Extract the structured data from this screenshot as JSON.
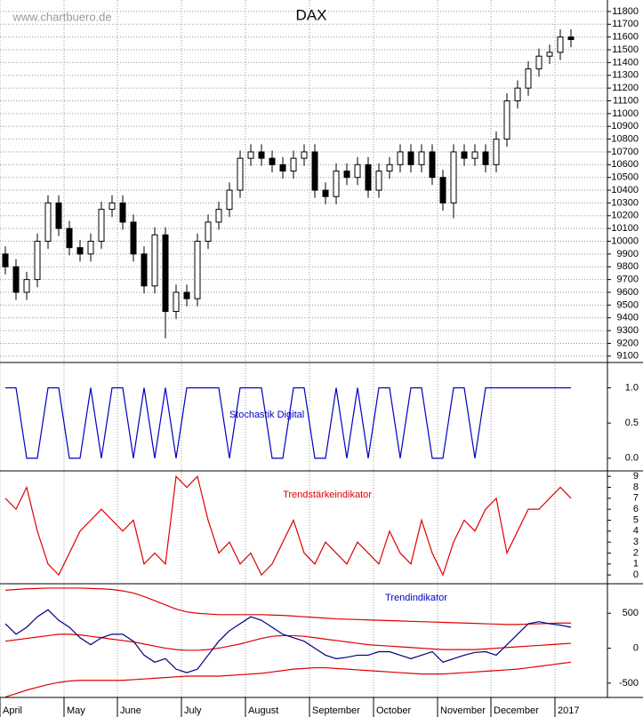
{
  "chart_data": [
    {
      "type": "candlestick",
      "title": "DAX",
      "annotation": "www.chartbuero.de",
      "open": [
        9900,
        9800,
        9600,
        9700,
        10000,
        10300,
        10100,
        9950,
        9900,
        10000,
        10250,
        10300,
        10150,
        9900,
        9650,
        10050,
        9450,
        9600,
        9550,
        10000,
        10150,
        10250,
        10400,
        10650,
        10700,
        10650,
        10600,
        10550,
        10650,
        10700,
        10400,
        10350,
        10550,
        10500,
        10600,
        10400,
        10550,
        10600,
        10700,
        10600,
        10700,
        10500,
        10300,
        10700,
        10650,
        10700,
        10600,
        10800,
        11100,
        11200,
        11350,
        11450,
        11480,
        11600
      ],
      "high": [
        9960,
        9860,
        9760,
        10060,
        10360,
        10360,
        10160,
        10010,
        10060,
        10310,
        10360,
        10360,
        10210,
        9960,
        10110,
        10110,
        9660,
        9660,
        10060,
        10210,
        10310,
        10460,
        10710,
        10760,
        10760,
        10710,
        10660,
        10710,
        10760,
        10760,
        10460,
        10610,
        10610,
        10660,
        10660,
        10610,
        10660,
        10760,
        10760,
        10760,
        10760,
        10560,
        10760,
        10760,
        10760,
        10760,
        10860,
        11160,
        11260,
        11410,
        11510,
        11540,
        11660,
        11660
      ],
      "low": [
        9740,
        9540,
        9540,
        9640,
        9940,
        10040,
        9890,
        9840,
        9840,
        9940,
        10190,
        10090,
        9840,
        9590,
        9590,
        9240,
        9390,
        9490,
        9490,
        9940,
        10090,
        10190,
        10340,
        10590,
        10590,
        10540,
        10490,
        10490,
        10590,
        10340,
        10290,
        10290,
        10440,
        10440,
        10340,
        10340,
        10490,
        10540,
        10540,
        10540,
        10440,
        10240,
        10180,
        10590,
        10590,
        10540,
        10540,
        10740,
        11040,
        11140,
        11290,
        11390,
        11420,
        11520
      ],
      "close": [
        9800,
        9600,
        9700,
        10000,
        10300,
        10100,
        9950,
        9900,
        10000,
        10250,
        10300,
        10150,
        9900,
        9650,
        10050,
        9450,
        9600,
        9550,
        10000,
        10150,
        10250,
        10400,
        10650,
        10700,
        10650,
        10600,
        10550,
        10650,
        10700,
        10400,
        10350,
        10550,
        10500,
        10600,
        10400,
        10550,
        10600,
        10700,
        10600,
        10700,
        10500,
        10300,
        10700,
        10650,
        10700,
        10600,
        10800,
        11100,
        11200,
        11350,
        11450,
        11480,
        11600,
        11580
      ],
      "ylim": [
        9050,
        11890
      ],
      "yticks": [
        9100,
        9200,
        9300,
        9400,
        9500,
        9600,
        9700,
        9800,
        9900,
        10000,
        10100,
        10200,
        10300,
        10400,
        10500,
        10600,
        10700,
        10800,
        10900,
        11000,
        11100,
        11200,
        11300,
        11400,
        11500,
        11600,
        11700,
        11800
      ],
      "grid": true
    },
    {
      "type": "line",
      "label": "Stochastik Digital",
      "series": [
        {
          "color": "#0000c0",
          "values": [
            1,
            1,
            0,
            0,
            1,
            1,
            0,
            0,
            1,
            0,
            1,
            1,
            0,
            1,
            0,
            1,
            0,
            1,
            1,
            1,
            1,
            0,
            1,
            1,
            1,
            0,
            0,
            1,
            1,
            0,
            0,
            1,
            0,
            1,
            0,
            1,
            1,
            0,
            1,
            1,
            0,
            0,
            1,
            1,
            0,
            1,
            1,
            1,
            1,
            1,
            1,
            1,
            1,
            1
          ]
        }
      ],
      "ylim": [
        -0.18,
        1.36
      ],
      "yticks": [
        {
          "value": 1,
          "label": "1.0"
        },
        0.5,
        {
          "value": 0,
          "label": "0.0"
        }
      ]
    },
    {
      "type": "line",
      "label": "Trendstärkeindikator",
      "series": [
        {
          "color": "#e00000",
          "values": [
            7,
            6,
            8,
            4,
            1,
            0,
            2,
            4,
            5,
            6,
            5,
            4,
            5,
            1,
            2,
            1,
            9,
            8,
            9,
            5,
            2,
            3,
            1,
            2,
            0,
            1,
            3,
            5,
            2,
            1,
            3,
            2,
            1,
            3,
            2,
            1,
            4,
            2,
            1,
            5,
            2,
            0,
            3,
            5,
            4,
            6,
            7,
            2,
            4,
            6,
            6,
            7,
            8,
            7
          ]
        }
      ],
      "ylim": [
        -0.8,
        9.5
      ],
      "yticks": [
        0,
        1,
        2,
        3,
        4,
        5,
        6,
        7,
        8,
        9
      ]
    },
    {
      "type": "line",
      "label": "Trendindikator",
      "categories": [
        "April",
        null,
        null,
        null,
        null,
        null,
        "May",
        null,
        null,
        null,
        null,
        "June",
        null,
        null,
        null,
        null,
        null,
        "July",
        null,
        null,
        null,
        null,
        null,
        "August",
        null,
        null,
        null,
        null,
        null,
        "September",
        null,
        null,
        null,
        null,
        null,
        "October",
        null,
        null,
        null,
        null,
        null,
        "November",
        null,
        null,
        null,
        null,
        "December",
        null,
        null,
        null,
        null,
        null,
        "2017",
        null
      ],
      "series": [
        {
          "color": "#e00000",
          "values": [
            830,
            840,
            850,
            855,
            860,
            860,
            860,
            860,
            855,
            850,
            840,
            820,
            790,
            740,
            680,
            620,
            560,
            520,
            500,
            490,
            480,
            480,
            480,
            480,
            480,
            475,
            470,
            460,
            450,
            440,
            430,
            420,
            415,
            410,
            405,
            400,
            395,
            390,
            385,
            380,
            375,
            370,
            365,
            360,
            355,
            350,
            345,
            340,
            340,
            345,
            350,
            355,
            360,
            360
          ]
        },
        {
          "color": "#e00000",
          "values": [
            100,
            120,
            140,
            160,
            180,
            200,
            200,
            190,
            170,
            150,
            130,
            110,
            90,
            60,
            30,
            0,
            -20,
            -30,
            -30,
            -20,
            0,
            30,
            60,
            100,
            140,
            170,
            180,
            180,
            170,
            150,
            130,
            110,
            90,
            70,
            50,
            40,
            30,
            20,
            10,
            0,
            -10,
            -20,
            -20,
            -20,
            -20,
            -10,
            0,
            10,
            20,
            30,
            40,
            50,
            60,
            70
          ]
        },
        {
          "color": "#e00000",
          "values": [
            -700,
            -650,
            -600,
            -560,
            -520,
            -490,
            -470,
            -460,
            -460,
            -460,
            -460,
            -460,
            -450,
            -440,
            -430,
            -420,
            -410,
            -400,
            -400,
            -400,
            -400,
            -390,
            -380,
            -370,
            -360,
            -340,
            -320,
            -300,
            -290,
            -280,
            -280,
            -290,
            -300,
            -310,
            -320,
            -330,
            -340,
            -350,
            -360,
            -370,
            -370,
            -370,
            -360,
            -350,
            -340,
            -330,
            -320,
            -310,
            -300,
            -280,
            -260,
            -240,
            -220,
            -200
          ]
        },
        {
          "color": "#000080",
          "values": [
            350,
            200,
            300,
            450,
            550,
            400,
            300,
            150,
            50,
            150,
            200,
            200,
            100,
            -100,
            -200,
            -150,
            -300,
            -350,
            -300,
            -100,
            100,
            250,
            350,
            450,
            400,
            300,
            200,
            150,
            100,
            0,
            -100,
            -150,
            -130,
            -100,
            -100,
            -50,
            -50,
            -100,
            -150,
            -100,
            -50,
            -200,
            -150,
            -100,
            -60,
            -50,
            -100,
            50,
            200,
            350,
            380,
            350,
            330,
            300
          ]
        }
      ],
      "ylim": [
        -705,
        923
      ],
      "yticks": [
        500,
        0,
        -500
      ]
    }
  ]
}
